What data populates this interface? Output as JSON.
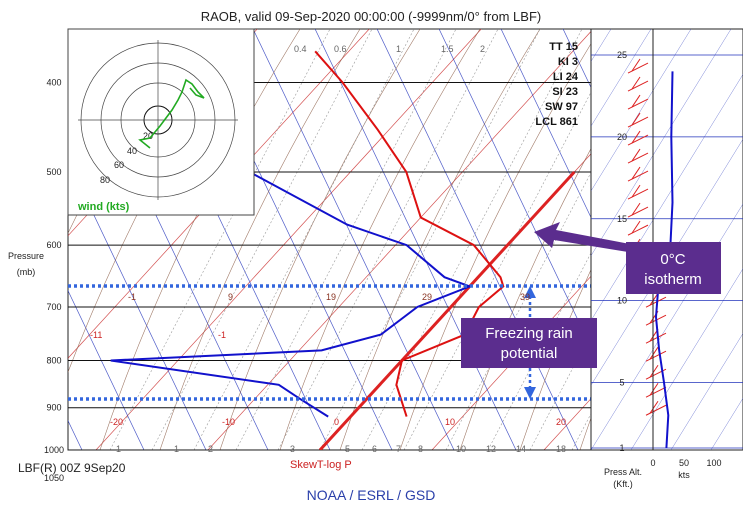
{
  "title": "RAOB, valid 09-Sep-2020 00:00:00 (-9999nm/0° from LBF)",
  "station_label": "LBF(R) 00Z 9Sep20",
  "diagram_type": "SkewT-log P",
  "footer": "NOAA / ESRL / GSD",
  "pressure_axis": {
    "label_line1": "Pressure",
    "label_line2": "(mb)",
    "ticks": [
      "400",
      "500",
      "600",
      "700",
      "800",
      "900",
      "1000"
    ],
    "tick_values": [
      400,
      500,
      600,
      700,
      800,
      900,
      1000
    ],
    "bottom_cut_label": "1050"
  },
  "indices": [
    {
      "name": "TT",
      "value": "15"
    },
    {
      "name": "KI",
      "value": "3"
    },
    {
      "name": "LI",
      "value": "24"
    },
    {
      "name": "SI",
      "value": "23"
    },
    {
      "name": "SW",
      "value": "97"
    },
    {
      "name": "LCL",
      "value": "861"
    }
  ],
  "hodograph": {
    "label": "wind (kts)",
    "ring_labels": [
      "20",
      "40",
      "60",
      "80"
    ],
    "colors": {
      "trace": "#22aa22",
      "label": "#22aa22"
    }
  },
  "mixing_ratio_labels": [
    "0.4",
    "0.6",
    "1",
    "1.5",
    "2"
  ],
  "bottom_mixing_labels": [
    "1",
    "1",
    "2",
    "3",
    "5",
    "6",
    "7",
    "8",
    "10",
    "12",
    "14",
    "18"
  ],
  "temp_labels_bottom": [
    "-20",
    "-10",
    "0",
    "10",
    "20"
  ],
  "temp_labels_mid": [
    "-11",
    "-1"
  ],
  "theta_e_labels": [
    "-1",
    "9",
    "19",
    "29",
    "39"
  ],
  "altitude_axis": {
    "ticks": [
      "25",
      "20",
      "15",
      "10",
      "5",
      "1"
    ],
    "label_line1": "Press Alt.",
    "label_line2": "(Kft.)"
  },
  "wind_speed_axis": {
    "ticks": [
      "0",
      "50",
      "100"
    ],
    "label": "kts"
  },
  "annotations": {
    "freezing_level_label": "0°C isotherm",
    "freezing_level_line1": "0°C",
    "freezing_level_line2": "isotherm",
    "freezing_rain_line1": "Freezing rain",
    "freezing_rain_line2": "potential",
    "box_color": "#5b2d8e",
    "dotted_line_color": "#3366dd"
  },
  "colors": {
    "temperature": "#dd1111",
    "dewpoint": "#1111cc",
    "isotherm_0c": "#dd2222",
    "wind_speed": "#1111cc"
  },
  "chart_data": {
    "type": "line",
    "title": "RAOB, valid 09-Sep-2020 00:00:00 (-9999nm/0° from LBF)",
    "ylabel": "Pressure (mb)",
    "y_scale": "log",
    "ylim": [
      1000,
      350
    ],
    "series": [
      {
        "name": "temperature",
        "color": "#dd1111",
        "points": [
          {
            "p": 920,
            "t": 5.0
          },
          {
            "p": 850,
            "t": 1.5
          },
          {
            "p": 800,
            "t": 0.0
          },
          {
            "p": 750,
            "t": 3.5
          },
          {
            "p": 700,
            "t": 2.5
          },
          {
            "p": 665,
            "t": 3.0
          },
          {
            "p": 650,
            "t": 2.0
          },
          {
            "p": 600,
            "t": -3.0
          },
          {
            "p": 560,
            "t": -10.0
          },
          {
            "p": 500,
            "t": -15.0
          },
          {
            "p": 450,
            "t": -21.0
          },
          {
            "p": 400,
            "t": -28.0
          },
          {
            "p": 370,
            "t": -33.0
          }
        ]
      },
      {
        "name": "dewpoint",
        "color": "#1111cc",
        "points": [
          {
            "p": 920,
            "t": -2.0
          },
          {
            "p": 880,
            "t": -6.0
          },
          {
            "p": 850,
            "t": -9.0
          },
          {
            "p": 800,
            "t": -26.0
          },
          {
            "p": 780,
            "t": -8.0
          },
          {
            "p": 750,
            "t": -4.0
          },
          {
            "p": 700,
            "t": -3.0
          },
          {
            "p": 665,
            "t": 0.0
          },
          {
            "p": 650,
            "t": -3.0
          },
          {
            "p": 600,
            "t": -9.0
          },
          {
            "p": 570,
            "t": -16.0
          },
          {
            "p": 500,
            "t": -29.0
          },
          {
            "p": 450,
            "t": -38.0
          },
          {
            "p": 400,
            "t": -44.0
          },
          {
            "p": 380,
            "t": -60.0
          },
          {
            "p": 360,
            "t": -80.0
          }
        ]
      }
    ],
    "isotherm_0c": {
      "t": 0
    },
    "freezing_rain_layer_mb": [
      665,
      865
    ],
    "wind_speed_kts": [
      {
        "alt_kft": 1,
        "speed": 22
      },
      {
        "alt_kft": 3,
        "speed": 25
      },
      {
        "alt_kft": 5,
        "speed": 18
      },
      {
        "alt_kft": 7,
        "speed": 10
      },
      {
        "alt_kft": 9,
        "speed": 5
      },
      {
        "alt_kft": 10.5,
        "speed": 8
      },
      {
        "alt_kft": 13,
        "speed": 28
      },
      {
        "alt_kft": 16,
        "speed": 32
      },
      {
        "alt_kft": 20,
        "speed": 30
      },
      {
        "alt_kft": 24,
        "speed": 32
      }
    ]
  }
}
